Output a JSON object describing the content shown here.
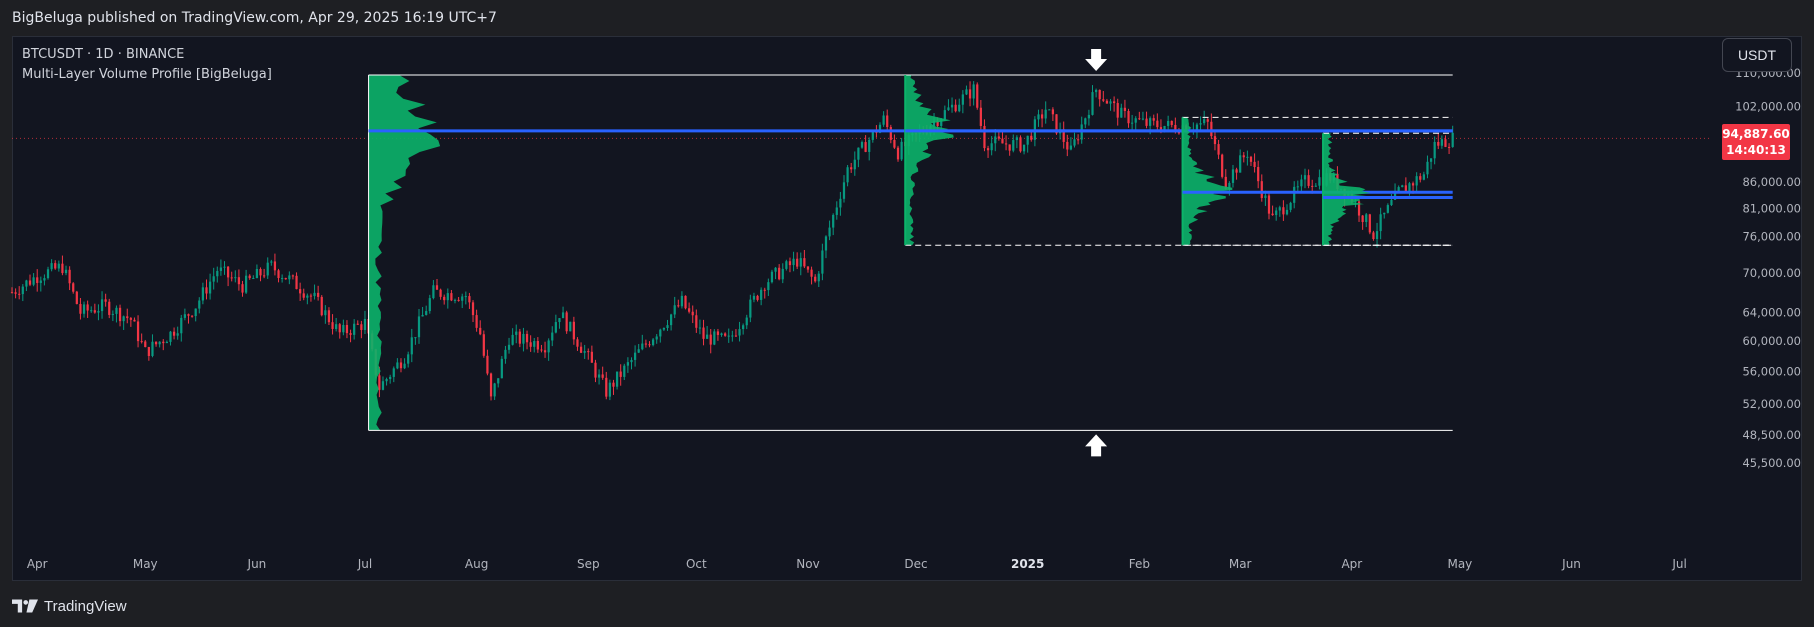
{
  "header": {
    "published_text": "BigBeluga published on TradingView.com, Apr 29, 2025 16:19 UTC+7"
  },
  "legend": {
    "symbol_line": "BTCUSDT · 1D · BINANCE",
    "indicator_line": "Multi-Layer Volume Profile [BigBeluga]"
  },
  "currency_button": {
    "label": "USDT"
  },
  "last_price": {
    "price": "94,887.60",
    "countdown": "14:40:13"
  },
  "footer": {
    "brand": "TradingView"
  },
  "colors": {
    "background": "#121520",
    "up_candle": "#089981",
    "down_candle": "#f23645",
    "profile_fill": "#0cb36a",
    "poc_line": "#2962ff",
    "box_border": "#ffffff",
    "price_tag": "#f23645"
  },
  "chart_data": {
    "type": "candlestick",
    "title": "",
    "scale": "log",
    "ylim": [
      44000,
      118000
    ],
    "y_ticks": [
      {
        "value": 110000,
        "label": "110,000.00"
      },
      {
        "value": 102000,
        "label": "102,000.00"
      },
      {
        "value": 86000,
        "label": "86,000.00"
      },
      {
        "value": 81000,
        "label": "81,000.00"
      },
      {
        "value": 76000,
        "label": "76,000.00"
      },
      {
        "value": 70000,
        "label": "70,000.00"
      },
      {
        "value": 64000,
        "label": "64,000.00"
      },
      {
        "value": 60000,
        "label": "60,000.00"
      },
      {
        "value": 56000,
        "label": "56,000.00"
      },
      {
        "value": 52000,
        "label": "52,000.00"
      },
      {
        "value": 48500,
        "label": "48,500.00"
      },
      {
        "value": 45500,
        "label": "45,500.00"
      }
    ],
    "x_range": [
      "2024-03-25",
      "2025-07-10"
    ],
    "x_ticks": [
      {
        "date": "2024-04-01",
        "label": "Apr",
        "bold": false
      },
      {
        "date": "2024-05-01",
        "label": "May",
        "bold": false
      },
      {
        "date": "2024-06-01",
        "label": "Jun",
        "bold": false
      },
      {
        "date": "2024-07-01",
        "label": "Jul",
        "bold": false
      },
      {
        "date": "2024-08-01",
        "label": "Aug",
        "bold": false
      },
      {
        "date": "2024-09-01",
        "label": "Sep",
        "bold": false
      },
      {
        "date": "2024-10-01",
        "label": "Oct",
        "bold": false
      },
      {
        "date": "2024-11-01",
        "label": "Nov",
        "bold": false
      },
      {
        "date": "2024-12-01",
        "label": "Dec",
        "bold": false
      },
      {
        "date": "2025-01-01",
        "label": "2025",
        "bold": true
      },
      {
        "date": "2025-02-01",
        "label": "Feb",
        "bold": false
      },
      {
        "date": "2025-03-01",
        "label": "Mar",
        "bold": false
      },
      {
        "date": "2025-04-01",
        "label": "Apr",
        "bold": false
      },
      {
        "date": "2025-05-01",
        "label": "May",
        "bold": false
      },
      {
        "date": "2025-06-01",
        "label": "Jun",
        "bold": false
      },
      {
        "date": "2025-07-01",
        "label": "Jul",
        "bold": false
      }
    ],
    "price_path": [
      [
        "2024-03-25",
        67000
      ],
      [
        "2024-04-01",
        69500
      ],
      [
        "2024-04-08",
        71000
      ],
      [
        "2024-04-13",
        64000
      ],
      [
        "2024-04-20",
        65000
      ],
      [
        "2024-04-27",
        63000
      ],
      [
        "2024-05-01",
        58500
      ],
      [
        "2024-05-08",
        61000
      ],
      [
        "2024-05-15",
        65000
      ],
      [
        "2024-05-21",
        70500
      ],
      [
        "2024-05-28",
        68000
      ],
      [
        "2024-06-05",
        71000
      ],
      [
        "2024-06-10",
        69000
      ],
      [
        "2024-06-17",
        66000
      ],
      [
        "2024-06-24",
        61000
      ],
      [
        "2024-07-01",
        62500
      ],
      [
        "2024-07-05",
        54000
      ],
      [
        "2024-07-12",
        58000
      ],
      [
        "2024-07-20",
        67000
      ],
      [
        "2024-07-29",
        66500
      ],
      [
        "2024-08-02",
        61000
      ],
      [
        "2024-08-05",
        52500
      ],
      [
        "2024-08-10",
        60500
      ],
      [
        "2024-08-20",
        59500
      ],
      [
        "2024-08-24",
        64000
      ],
      [
        "2024-08-31",
        58500
      ],
      [
        "2024-09-06",
        53500
      ],
      [
        "2024-09-15",
        58500
      ],
      [
        "2024-09-27",
        65500
      ],
      [
        "2024-10-03",
        60500
      ],
      [
        "2024-10-10",
        60000
      ],
      [
        "2024-10-20",
        68500
      ],
      [
        "2024-10-29",
        72000
      ],
      [
        "2024-11-03",
        68500
      ],
      [
        "2024-11-06",
        75500
      ],
      [
        "2024-11-12",
        88500
      ],
      [
        "2024-11-22",
        99000
      ],
      [
        "2024-11-26",
        92000
      ],
      [
        "2024-12-05",
        98000
      ],
      [
        "2024-12-17",
        106000
      ],
      [
        "2024-12-20",
        94000
      ],
      [
        "2024-12-31",
        93500
      ],
      [
        "2025-01-06",
        101500
      ],
      [
        "2025-01-13",
        92000
      ],
      [
        "2025-01-20",
        106000
      ],
      [
        "2025-01-27",
        100000
      ],
      [
        "2025-02-03",
        98000
      ],
      [
        "2025-02-10",
        97500
      ],
      [
        "2025-02-20",
        98000
      ],
      [
        "2025-02-25",
        86000
      ],
      [
        "2025-03-03",
        92000
      ],
      [
        "2025-03-10",
        79000
      ],
      [
        "2025-03-19",
        86000
      ],
      [
        "2025-03-26",
        87000
      ],
      [
        "2025-04-01",
        83000
      ],
      [
        "2025-04-07",
        76500
      ],
      [
        "2025-04-14",
        84000
      ],
      [
        "2025-04-21",
        87500
      ],
      [
        "2025-04-24",
        93500
      ],
      [
        "2025-04-29",
        94887
      ]
    ],
    "profiles": [
      {
        "start": "2024-07-02",
        "end": "2025-04-29",
        "high": 109500,
        "low": 49000,
        "poc": 96500
      },
      {
        "start": "2024-11-28",
        "end": "2025-04-29",
        "high": 109500,
        "low": 74500,
        "poc": 96500
      },
      {
        "start": "2025-02-13",
        "end": "2025-04-29",
        "high": 99500,
        "low": 74500,
        "poc": 84000
      },
      {
        "start": "2025-03-24",
        "end": "2025-04-29",
        "high": 96000,
        "low": 74500,
        "poc": 83000
      }
    ],
    "arrows": [
      {
        "date": "2025-01-20",
        "value": 109500,
        "direction": "down"
      },
      {
        "date": "2025-01-20",
        "value": 49000,
        "direction": "up"
      }
    ],
    "last_price": 94887.6
  }
}
